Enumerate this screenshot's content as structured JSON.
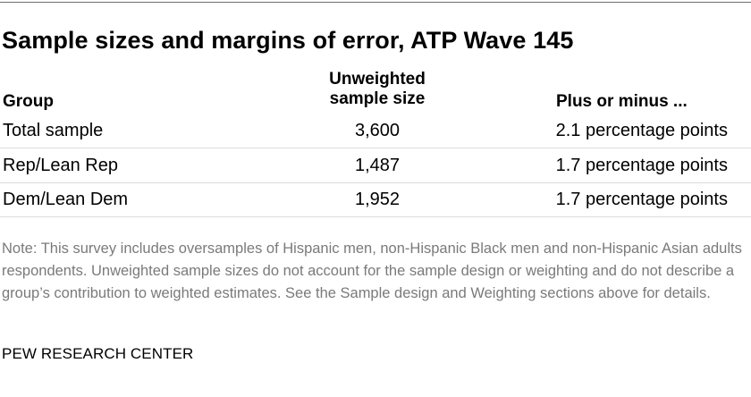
{
  "title": "Sample sizes and margins of error, ATP Wave 145",
  "headers": {
    "group": "Group",
    "sample_size_line1": "Unweighted",
    "sample_size_line2": "sample size",
    "moe": "Plus or minus ..."
  },
  "rows": [
    {
      "group": "Total sample",
      "sample_size": "3,600",
      "moe": "2.1 percentage points"
    },
    {
      "group": "Rep/Lean Rep",
      "sample_size": "1,487",
      "moe": "1.7 percentage points"
    },
    {
      "group": "Dem/Lean Dem",
      "sample_size": "1,952",
      "moe": "1.7 percentage points"
    }
  ],
  "note": "Note: This survey includes oversamples of Hispanic men, non-Hispanic Black men and non-Hispanic Asian adults respondents. Unweighted sample sizes do not account for the sample design or weighting and do not describe a group’s contribution to weighted estimates. See the Sample design and Weighting sections above for details.",
  "source": "PEW RESEARCH CENTER"
}
